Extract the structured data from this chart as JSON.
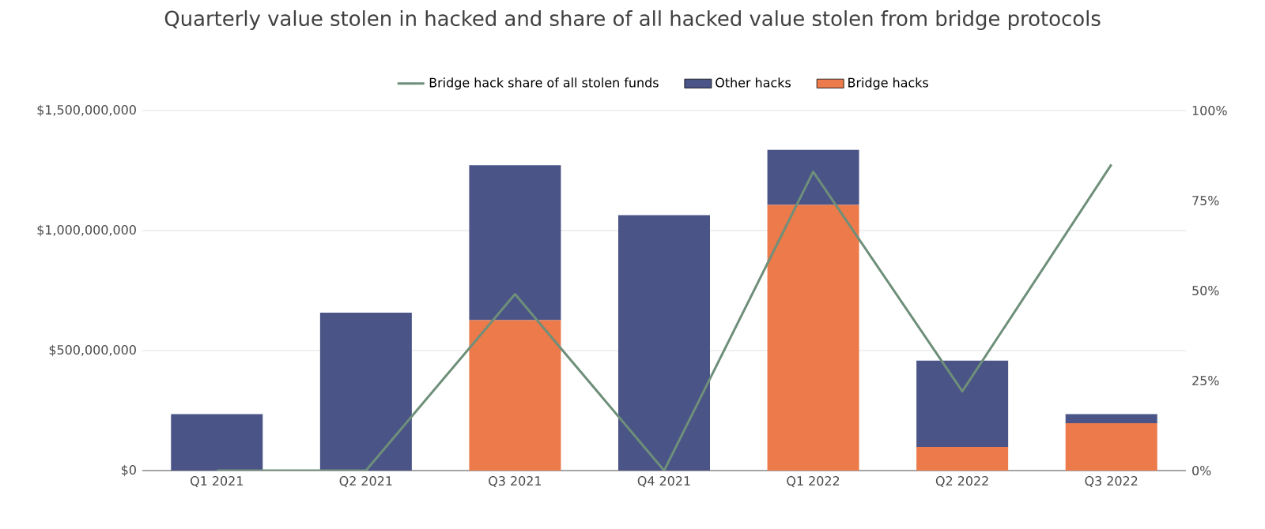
{
  "chart_data": {
    "type": "bar",
    "title": "Quarterly value stolen in hacked and share of all hacked value stolen from bridge protocols",
    "categories": [
      "Q1 2021",
      "Q2 2021",
      "Q3 2021",
      "Q4 2021",
      "Q1 2022",
      "Q2 2022",
      "Q3 2022"
    ],
    "stacked": true,
    "series": [
      {
        "name": "Bridge hacks",
        "color": "#ec7a4a",
        "values": [
          0,
          0,
          627000000,
          0,
          1107000000,
          99000000,
          197000000
        ]
      },
      {
        "name": "Other hacks",
        "color": "#4a5486",
        "values": [
          235000000,
          658000000,
          645000000,
          1064000000,
          229000000,
          359000000,
          38000000
        ]
      },
      {
        "name": "Bridge hack share of all stolen funds",
        "type": "line",
        "axis": "y2",
        "color": "#6e8f7a",
        "values": [
          0,
          0,
          49,
          0,
          83,
          22,
          85
        ]
      }
    ],
    "ylim": [
      0,
      1500000000
    ],
    "yticks": [
      {
        "value": 0,
        "label": "$0"
      },
      {
        "value": 500000000,
        "label": "$500,000,000"
      },
      {
        "value": 1000000000,
        "label": "$1,000,000,000"
      },
      {
        "value": 1500000000,
        "label": "$1,500,000,000"
      }
    ],
    "y2lim": [
      0,
      100
    ],
    "y2ticks": [
      {
        "value": 0,
        "label": "0%"
      },
      {
        "value": 25,
        "label": "25%"
      },
      {
        "value": 50,
        "label": "50%"
      },
      {
        "value": 75,
        "label": "75%"
      },
      {
        "value": 100,
        "label": "100%"
      }
    ],
    "grid": "y",
    "legend": "top",
    "marker": "none"
  }
}
